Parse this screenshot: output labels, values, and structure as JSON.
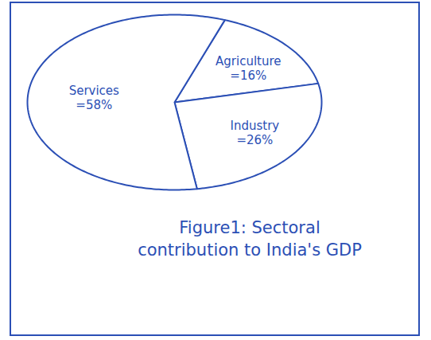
{
  "chart_data": {
    "type": "pie",
    "title": "Figure1: Sectoral contribution to India's GDP",
    "categories": [
      "Agriculture",
      "Industry",
      "Services"
    ],
    "values": [
      16,
      26,
      58
    ],
    "value_labels": [
      "=16%",
      "=26%",
      "=58%"
    ],
    "data_labels": true,
    "color": "#2b4fb5"
  }
}
